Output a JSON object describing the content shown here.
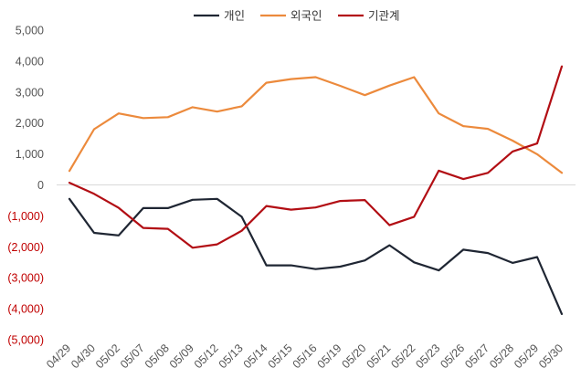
{
  "chart_data": {
    "type": "line",
    "title": "",
    "xlabel": "",
    "ylabel": "",
    "categories": [
      "04/29",
      "04/30",
      "05/02",
      "05/07",
      "05/08",
      "05/09",
      "05/12",
      "05/13",
      "05/14",
      "05/15",
      "05/16",
      "05/19",
      "05/20",
      "05/21",
      "05/22",
      "05/23",
      "05/26",
      "05/27",
      "05/28",
      "05/29",
      "05/30"
    ],
    "ylim": [
      -5000,
      5000
    ],
    "y_ticks": [
      {
        "value": 5000,
        "label": "5,000"
      },
      {
        "value": 4000,
        "label": "4,000"
      },
      {
        "value": 3000,
        "label": "3,000"
      },
      {
        "value": 2000,
        "label": "2,000"
      },
      {
        "value": 1000,
        "label": "1,000"
      },
      {
        "value": 0,
        "label": "0"
      },
      {
        "value": -1000,
        "label": "(1,000)"
      },
      {
        "value": -2000,
        "label": "(2,000)"
      },
      {
        "value": -3000,
        "label": "(3,000)"
      },
      {
        "value": -4000,
        "label": "(4,000)"
      },
      {
        "value": -5000,
        "label": "(5,000)"
      }
    ],
    "grid": false,
    "legend_position": "top-center",
    "negative_tick_color": "#c00000",
    "positive_tick_color": "#555555",
    "series": [
      {
        "name": "개인",
        "color": "#1f2633",
        "values": [
          -450,
          -1550,
          -1630,
          -750,
          -750,
          -480,
          -450,
          -1030,
          -2600,
          -2600,
          -2720,
          -2640,
          -2440,
          -1950,
          -2500,
          -2760,
          -2090,
          -2200,
          -2520,
          -2330,
          -4170
        ]
      },
      {
        "name": "외국인",
        "color": "#ec8a3c",
        "values": [
          450,
          1800,
          2310,
          2160,
          2190,
          2510,
          2370,
          2540,
          3300,
          3420,
          3480,
          3200,
          2900,
          3210,
          3480,
          2310,
          1900,
          1810,
          1430,
          990,
          390
        ]
      },
      {
        "name": "기관계",
        "color": "#b20e14",
        "values": [
          70,
          -290,
          -740,
          -1390,
          -1420,
          -2030,
          -1920,
          -1480,
          -680,
          -800,
          -730,
          -520,
          -490,
          -1300,
          -1030,
          460,
          190,
          390,
          1080,
          1340,
          3830
        ]
      }
    ]
  }
}
